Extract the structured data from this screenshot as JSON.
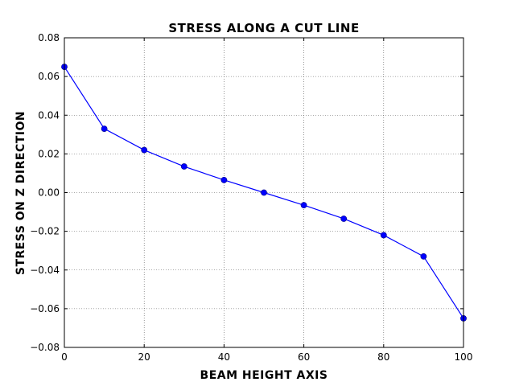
{
  "chart_data": {
    "type": "line",
    "title": "STRESS ALONG A CUT LINE",
    "xlabel": "BEAM HEIGHT AXIS",
    "ylabel": "STRESS ON Z DIRECTION",
    "xlim": [
      0,
      100
    ],
    "ylim": [
      -0.08,
      0.08
    ],
    "grid": true,
    "x_ticks": [
      0,
      20,
      40,
      60,
      80,
      100
    ],
    "x_tick_labels": [
      "0",
      "20",
      "40",
      "60",
      "80",
      "100"
    ],
    "y_ticks": [
      0.08,
      0.06,
      0.04,
      0.02,
      0.0,
      -0.02,
      -0.04,
      -0.06,
      -0.08
    ],
    "y_tick_labels": [
      "0.08",
      "0.06",
      "0.04",
      "0.02",
      "0.00",
      "−0.02",
      "−0.04",
      "−0.06",
      "−0.08"
    ],
    "series": [
      {
        "name": "stress",
        "color": "#0000ff",
        "x": [
          0,
          10,
          20,
          30,
          40,
          50,
          60,
          70,
          80,
          90,
          100
        ],
        "y": [
          0.065,
          0.033,
          0.022,
          0.0135,
          0.0065,
          0.0,
          -0.0065,
          -0.0135,
          -0.022,
          -0.033,
          -0.065
        ]
      }
    ]
  }
}
